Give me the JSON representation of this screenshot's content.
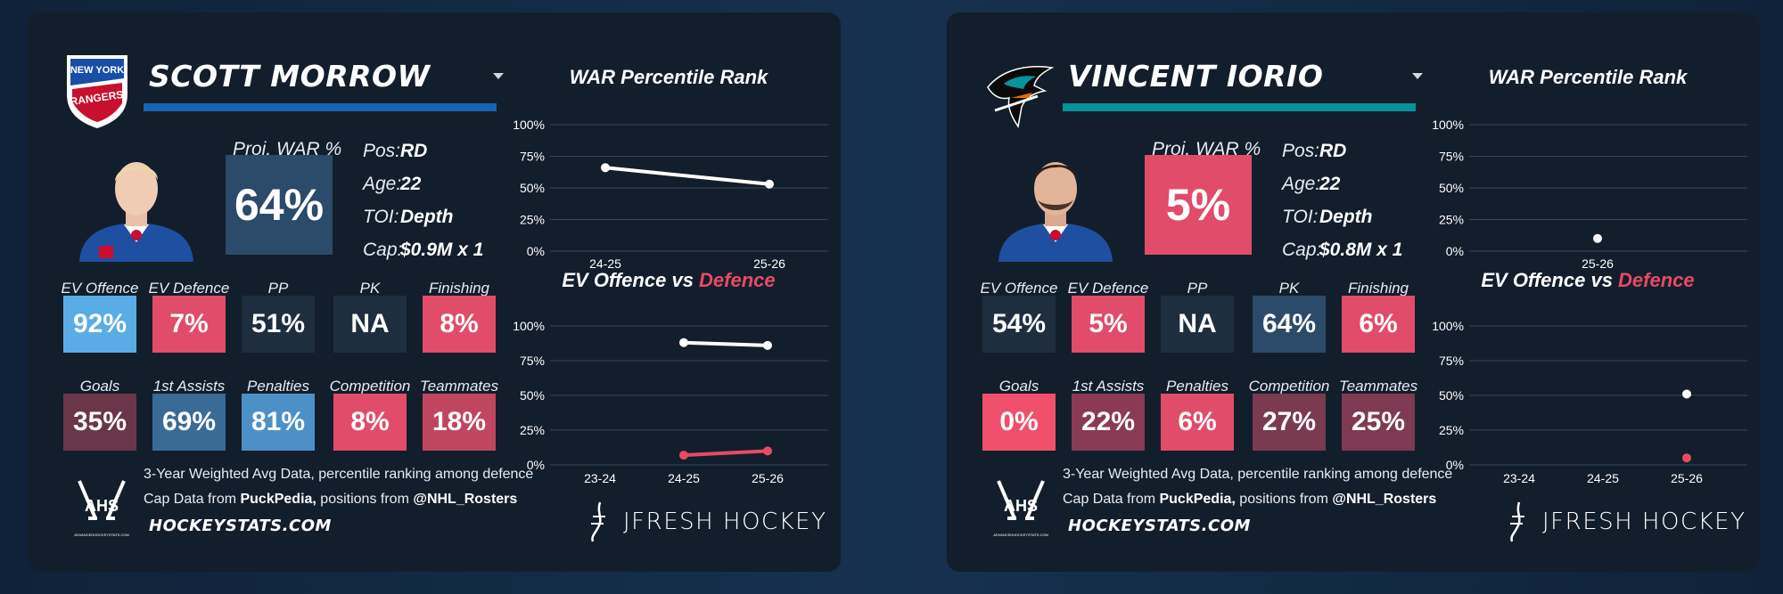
{
  "colors": {
    "bg_left": "#0f2238",
    "card": "#131e2c",
    "rangers_blue": "#1565b0",
    "sharks_teal": "#06939a",
    "proj_rangers": "#2c4a69",
    "proj_sharks": "#e14c6a",
    "red_line": "#e84a66",
    "grid": "#3a4a5c"
  },
  "cards": [
    {
      "team_icon": "new-york-rangers-logo-icon",
      "team_logo_text": [
        "NEW YORK",
        "RANGERS"
      ],
      "name": "SCOTT MORROW",
      "bar_color": "#1565b0",
      "proj_label": "Proj. WAR %",
      "proj_value": "64%",
      "proj_color": "#2c4a69",
      "info": [
        {
          "k": "Pos:",
          "v": "RD"
        },
        {
          "k": "Age:",
          "v": "22"
        },
        {
          "k": "TOI:",
          "v": "Depth"
        },
        {
          "k": "Cap:",
          "v": "$0.9M x 1"
        }
      ],
      "tiles_row1": [
        {
          "label": "EV Offence",
          "value": "92%",
          "color": "#5aace6"
        },
        {
          "label": "EV Defence",
          "value": "7%",
          "color": "#e14c6a"
        },
        {
          "label": "PP",
          "value": "51%",
          "color": "#1f2e3e"
        },
        {
          "label": "PK",
          "value": "NA",
          "color": "#1f2e3e"
        },
        {
          "label": "Finishing",
          "value": "8%",
          "color": "#e14c6a"
        }
      ],
      "tiles_row2": [
        {
          "label": "Goals",
          "value": "35%",
          "color": "#6b3649"
        },
        {
          "label": "1st Assists",
          "value": "69%",
          "color": "#3a6a96"
        },
        {
          "label": "Penalties",
          "value": "81%",
          "color": "#4d90c8"
        },
        {
          "label": "Competition",
          "value": "8%",
          "color": "#e14c6a"
        },
        {
          "label": "Teammates",
          "value": "18%",
          "color": "#c04660"
        }
      ],
      "war_chart": {
        "title": "WAR Percentile Rank",
        "ticks": [
          "100%",
          "75%",
          "50%",
          "25%",
          "0%"
        ],
        "x": [
          "24-25",
          "25-26"
        ],
        "values": [
          66,
          53
        ]
      },
      "ev_chart": {
        "title_a": "EV Offence",
        "title_vs": " vs ",
        "title_b": "Defence",
        "ticks": [
          "100%",
          "75%",
          "50%",
          "25%",
          "0%"
        ],
        "x": [
          "23-24",
          "24-25",
          "25-26"
        ],
        "offence": [
          null,
          88,
          86
        ],
        "defence": [
          null,
          7,
          10
        ]
      }
    },
    {
      "team_icon": "san-jose-sharks-logo-icon",
      "team_logo_text": [],
      "name": "VINCENT IORIO",
      "bar_color": "#06939a",
      "proj_label": "Proj. WAR %",
      "proj_value": "5%",
      "proj_color": "#e14c6a",
      "info": [
        {
          "k": "Pos:",
          "v": "RD"
        },
        {
          "k": "Age:",
          "v": "22"
        },
        {
          "k": "TOI:",
          "v": "Depth"
        },
        {
          "k": "Cap:",
          "v": "$0.8M x 1"
        }
      ],
      "tiles_row1": [
        {
          "label": "EV Offence",
          "value": "54%",
          "color": "#1f2e3e"
        },
        {
          "label": "EV Defence",
          "value": "5%",
          "color": "#e14c6a"
        },
        {
          "label": "PP",
          "value": "NA",
          "color": "#1f2e3e"
        },
        {
          "label": "PK",
          "value": "64%",
          "color": "#2c4a69"
        },
        {
          "label": "Finishing",
          "value": "6%",
          "color": "#e14c6a"
        }
      ],
      "tiles_row2": [
        {
          "label": "Goals",
          "value": "0%",
          "color": "#f0506c"
        },
        {
          "label": "1st Assists",
          "value": "22%",
          "color": "#8a3a55"
        },
        {
          "label": "Penalties",
          "value": "6%",
          "color": "#e14c6a"
        },
        {
          "label": "Competition",
          "value": "27%",
          "color": "#7a3a50"
        },
        {
          "label": "Teammates",
          "value": "25%",
          "color": "#7e3a52"
        }
      ],
      "war_chart": {
        "title": "WAR Percentile Rank",
        "ticks": [
          "100%",
          "75%",
          "50%",
          "25%",
          "0%"
        ],
        "x": [
          "25-26"
        ],
        "values": [
          10
        ]
      },
      "ev_chart": {
        "title_a": "EV Offence",
        "title_vs": " vs ",
        "title_b": "Defence",
        "ticks": [
          "100%",
          "75%",
          "50%",
          "25%",
          "0%"
        ],
        "x": [
          "23-24",
          "24-25",
          "25-26"
        ],
        "offence": [
          null,
          null,
          51
        ],
        "defence": [
          null,
          null,
          5
        ]
      }
    }
  ],
  "footer": {
    "line1": "3-Year Weighted Avg Data, percentile ranking among defence",
    "line2_a": "Cap Data from ",
    "line2_b": "PuckPedia,",
    "line2_c": " positions from ",
    "line2_d": "@NHL_Rosters",
    "site": "HOCKEYSTATS.COM",
    "ahs_text": "AHS",
    "ahs_sub": "ADVANCEDHOCKEYSTATS.COM",
    "brand": "JFRESH HOCKEY"
  }
}
